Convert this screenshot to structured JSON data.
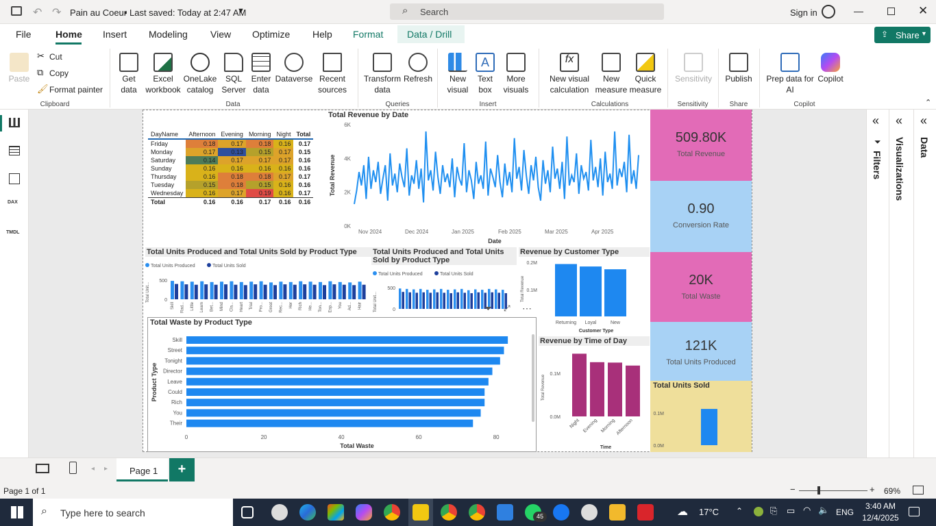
{
  "titlebar": {
    "file_name": "Pain au Coeur",
    "saved": "Last saved: Today at 2:47 AM",
    "search": "Search",
    "signin": "Sign in"
  },
  "menu": {
    "file": "File",
    "home": "Home",
    "insert": "Insert",
    "modeling": "Modeling",
    "view": "View",
    "optimize": "Optimize",
    "help": "Help",
    "format": "Format",
    "data_drill": "Data / Drill",
    "share": "Share"
  },
  "ribbon": {
    "paste": "Paste",
    "cut": "Cut",
    "copy": "Copy",
    "format_painter": "Format painter",
    "clipboard": "Clipboard",
    "get_data": "Get data",
    "excel": "Excel workbook",
    "onelake": "OneLake catalog",
    "sql": "SQL Server",
    "enter": "Enter data",
    "dataverse": "Dataverse",
    "recent": "Recent sources",
    "data_grp": "Data",
    "transform": "Transform data",
    "refresh": "Refresh",
    "queries": "Queries",
    "new_visual": "New visual",
    "text_box": "Text box",
    "more_visuals": "More visuals",
    "insert_grp": "Insert",
    "new_visual_calc": "New visual calculation",
    "new_measure": "New measure",
    "quick_measure": "Quick measure",
    "calculations": "Calculations",
    "sensitivity": "Sensitivity",
    "sensitivity_grp": "Sensitivity",
    "publish": "Publish",
    "share_grp": "Share",
    "prep": "Prep data for AI",
    "copilot": "Copilot",
    "copilot_grp": "Copilot"
  },
  "matrix": {
    "headers": [
      "DayName",
      "Afternoon",
      "Evening",
      "Morning",
      "Night",
      "Total"
    ],
    "rows": [
      [
        "Friday",
        "0.18",
        "0.17",
        "0.18",
        "0.16",
        "0.17"
      ],
      [
        "Monday",
        "0.17",
        "0.13",
        "0.15",
        "0.17",
        "0.15"
      ],
      [
        "Saturday",
        "0.14",
        "0.17",
        "0.17",
        "0.17",
        "0.16"
      ],
      [
        "Sunday",
        "0.16",
        "0.16",
        "0.16",
        "0.16",
        "0.16"
      ],
      [
        "Thursday",
        "0.16",
        "0.18",
        "0.18",
        "0.17",
        "0.17"
      ],
      [
        "Tuesday",
        "0.15",
        "0.18",
        "0.15",
        "0.16",
        "0.16"
      ],
      [
        "Wednesday",
        "0.16",
        "0.17",
        "0.19",
        "0.16",
        "0.17"
      ]
    ],
    "total": [
      "Total",
      "0.16",
      "0.16",
      "0.17",
      "0.16",
      "0.16"
    ]
  },
  "chart_data": [
    {
      "type": "line",
      "title": "Total Revenue by Date",
      "xlabel": "Date",
      "ylabel": "Total Revenue",
      "yticks": [
        "0K",
        "2K",
        "4K",
        "6K"
      ],
      "ylim": [
        0,
        6000
      ],
      "xticks": [
        "Nov 2024",
        "Dec 2024",
        "Jan 2025",
        "Feb 2025",
        "Mar 2025",
        "Apr 2025"
      ],
      "values": [
        1300,
        2100,
        3200,
        2400,
        3600,
        1600,
        4100,
        2200,
        3300,
        2600,
        3800,
        1900,
        2800,
        3600,
        1500,
        4300,
        2400,
        3100,
        2000,
        3700,
        2900,
        2300,
        4600,
        1800,
        3000,
        2500,
        3900,
        2200,
        3400,
        1400,
        5600,
        2700,
        3300,
        2100,
        4400,
        2900,
        1900,
        3600,
        2600,
        3100,
        2300,
        4000,
        1700,
        3500,
        2800,
        2400,
        4900,
        2000,
        3300,
        2700,
        1600,
        3800,
        2500,
        3000,
        2200,
        5000,
        1800,
        3400,
        2900,
        2300,
        4200,
        2600,
        1700,
        3700,
        2400,
        3200,
        2000,
        5200,
        2800,
        3500,
        2100,
        4500,
        3000,
        1900,
        3600,
        2700,
        4100,
        2300,
        1500,
        3900,
        2500,
        3300,
        2000,
        4700,
        2800,
        3400,
        2200,
        3800,
        1600,
        5300,
        2400,
        3000,
        2600,
        4300,
        1900,
        3600,
        2800,
        3200,
        2100,
        5100,
        2700,
        3500,
        2300,
        4000,
        1800,
        4400,
        2600,
        3100,
        2200,
        5600,
        2400,
        3400,
        2900,
        3800,
        2000,
        5400,
        2500,
        3300,
        2200,
        4200
      ]
    },
    {
      "type": "bar",
      "title": "Total Units Produced and Total Units Sold by Product Type",
      "series": [
        {
          "name": "Total Units Produced",
          "values": [
            480,
            470,
            460,
            470,
            450,
            460,
            470,
            450,
            460,
            470,
            440,
            460,
            450,
            470,
            460,
            450,
            470,
            450,
            440,
            460
          ]
        },
        {
          "name": "Total Units Sold",
          "values": [
            400,
            390,
            380,
            390,
            380,
            390,
            380,
            370,
            390,
            380,
            370,
            390,
            380,
            390,
            380,
            370,
            390,
            380,
            370,
            380
          ]
        }
      ],
      "categories": [
        "Skill",
        "Rad...",
        "Little",
        "Learn",
        "Bet...",
        "Mind",
        "Cla...",
        "Heart",
        "Trial",
        "Pro...",
        "Great",
        "Rec...",
        "Her",
        "Rich",
        "He...",
        "Ton...",
        "Esp...",
        "You",
        "Ad...",
        "Hair"
      ],
      "ylabel": "Total Unit...",
      "yticks": [
        "0",
        "500"
      ]
    },
    {
      "type": "bar",
      "title": "Total Units Produced and Total Units Sold by Product Type",
      "series": [
        {
          "name": "Total Units Produced",
          "values": [
            480,
            470,
            460,
            470,
            450,
            460,
            470,
            450,
            460,
            470,
            440,
            460,
            450,
            470,
            460,
            450
          ]
        },
        {
          "name": "Total Units Sold",
          "values": [
            400,
            390,
            380,
            390,
            380,
            390,
            380,
            370,
            390,
            380,
            370,
            390,
            380,
            390,
            380,
            370
          ]
        }
      ],
      "categories": [
        "Skill",
        "Co",
        "de",
        "ne",
        "m",
        "ned",
        "e",
        "m",
        "n",
        "e",
        "e",
        "m",
        "n",
        "e",
        "e",
        "m"
      ],
      "ylabel": "Total Unit...",
      "yticks": [
        "0",
        "500"
      ]
    },
    {
      "type": "bar",
      "title": "Revenue by Customer Type",
      "categories": [
        "Returning",
        "Loyal",
        "New"
      ],
      "values": [
        170000,
        162000,
        153000
      ],
      "xlabel": "Customer Type",
      "ylabel": "Total Revenue",
      "yticks": [
        "0.1M",
        "0.2M"
      ]
    },
    {
      "type": "bar",
      "title": "Total Waste by Product Type",
      "orientation": "horizontal",
      "categories": [
        "Skill",
        "Street",
        "Tonight",
        "Director",
        "Leave",
        "Could",
        "Rich",
        "You",
        "Their"
      ],
      "values": [
        83,
        82,
        81,
        79,
        78,
        77,
        77,
        76,
        74
      ],
      "xlabel": "Total Waste",
      "ylabel": "Product Type",
      "xticks": [
        "0",
        "20",
        "40",
        "60",
        "80"
      ]
    },
    {
      "type": "bar",
      "title": "Revenue by Time of Day",
      "categories": [
        "Night",
        "Evening",
        "Morning",
        "Afternoon"
      ],
      "values": [
        148000,
        128000,
        127000,
        120000
      ],
      "xlabel": "Time",
      "ylabel": "Total Revenue",
      "yticks": [
        "0.0M",
        "0.1M"
      ]
    },
    {
      "type": "bar",
      "title": "Total Units Sold",
      "categories": [
        ""
      ],
      "values": [
        121000
      ],
      "yticks": [
        "0.0M",
        "0.1M"
      ]
    }
  ],
  "kpis": [
    {
      "value": "509.80K",
      "label": "Total Revenue",
      "color": "#e26bb7"
    },
    {
      "value": "0.90",
      "label": "Conversion Rate",
      "color": "#a8d2f5"
    },
    {
      "value": "20K",
      "label": "Total Waste",
      "color": "#e26bb7"
    },
    {
      "value": "121K",
      "label": "Total Units Produced",
      "color": "#a8d2f5"
    }
  ],
  "panes": {
    "filters": "Filters",
    "visualizations": "Visualizations",
    "data": "Data"
  },
  "tabs": {
    "page1": "Page 1",
    "add": "+"
  },
  "status": {
    "page": "Page 1 of 1",
    "zoom": "69%"
  },
  "taskbar": {
    "search": "Type here to search",
    "weather": "17°C",
    "lang": "ENG",
    "time": "3:40 AM",
    "date": "12/4/2025",
    "badge": "45"
  }
}
